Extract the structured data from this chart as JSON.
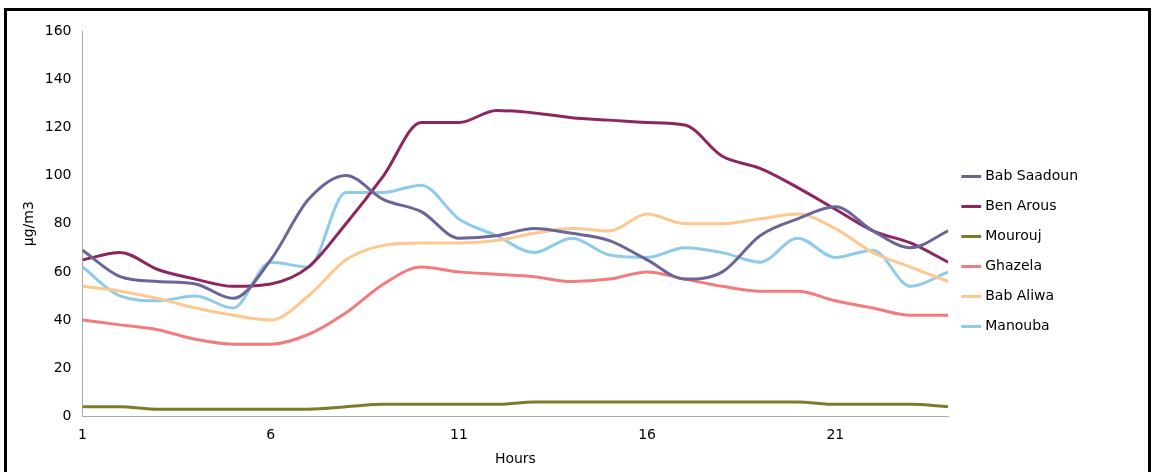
{
  "chart_data": {
    "type": "line",
    "xlabel": "Hours",
    "ylabel": "µg/m3",
    "x": [
      1,
      2,
      3,
      4,
      5,
      6,
      7,
      8,
      9,
      10,
      11,
      12,
      13,
      14,
      15,
      16,
      17,
      18,
      19,
      20,
      21,
      22,
      23,
      24
    ],
    "xlim": [
      1,
      24
    ],
    "xticks": [
      1,
      6,
      11,
      16,
      21
    ],
    "ylim": [
      0,
      160
    ],
    "yticks": [
      0,
      20,
      40,
      60,
      80,
      100,
      120,
      140,
      160
    ],
    "grid": false,
    "legend": "right",
    "marker": "none",
    "line_style": "solid",
    "series": [
      {
        "name": "Bab Saadoun",
        "color": "#6a6599",
        "values": [
          69,
          58,
          56,
          55,
          49,
          65,
          90,
          100,
          90,
          85,
          74,
          75,
          78,
          76,
          73,
          65,
          57,
          60,
          75,
          82,
          87,
          77,
          70,
          77
        ]
      },
      {
        "name": "Ben Arous",
        "color": "#8e2460",
        "values": [
          65,
          68,
          61,
          57,
          54,
          55,
          62,
          80,
          100,
          122,
          122,
          127,
          126,
          124,
          123,
          122,
          121,
          108,
          103,
          95,
          86,
          77,
          72,
          64
        ]
      },
      {
        "name": "Mourouj",
        "color": "#7b7b2a",
        "values": [
          4,
          4,
          3,
          3,
          3,
          3,
          3,
          4,
          5,
          5,
          5,
          5,
          6,
          6,
          6,
          6,
          6,
          6,
          6,
          6,
          5,
          5,
          5,
          4
        ]
      },
      {
        "name": "Ghazela",
        "color": "#f47b7d",
        "values": [
          40,
          38,
          36,
          32,
          30,
          30,
          34,
          43,
          55,
          62,
          60,
          59,
          58,
          56,
          57,
          60,
          57,
          54,
          52,
          52,
          48,
          45,
          42,
          42
        ]
      },
      {
        "name": "Bab Aliwa",
        "color": "#fdc78d",
        "values": [
          54,
          52,
          49,
          45,
          42,
          40,
          50,
          65,
          71,
          72,
          72,
          73,
          76,
          78,
          77,
          84,
          80,
          80,
          82,
          84,
          78,
          68,
          62,
          56
        ]
      },
      {
        "name": "Manouba",
        "color": "#8ecbeb",
        "values": [
          62,
          50,
          48,
          50,
          45,
          64,
          62,
          93,
          93,
          96,
          82,
          75,
          68,
          74,
          67,
          66,
          70,
          68,
          64,
          74,
          66,
          69,
          54,
          60
        ]
      }
    ]
  }
}
